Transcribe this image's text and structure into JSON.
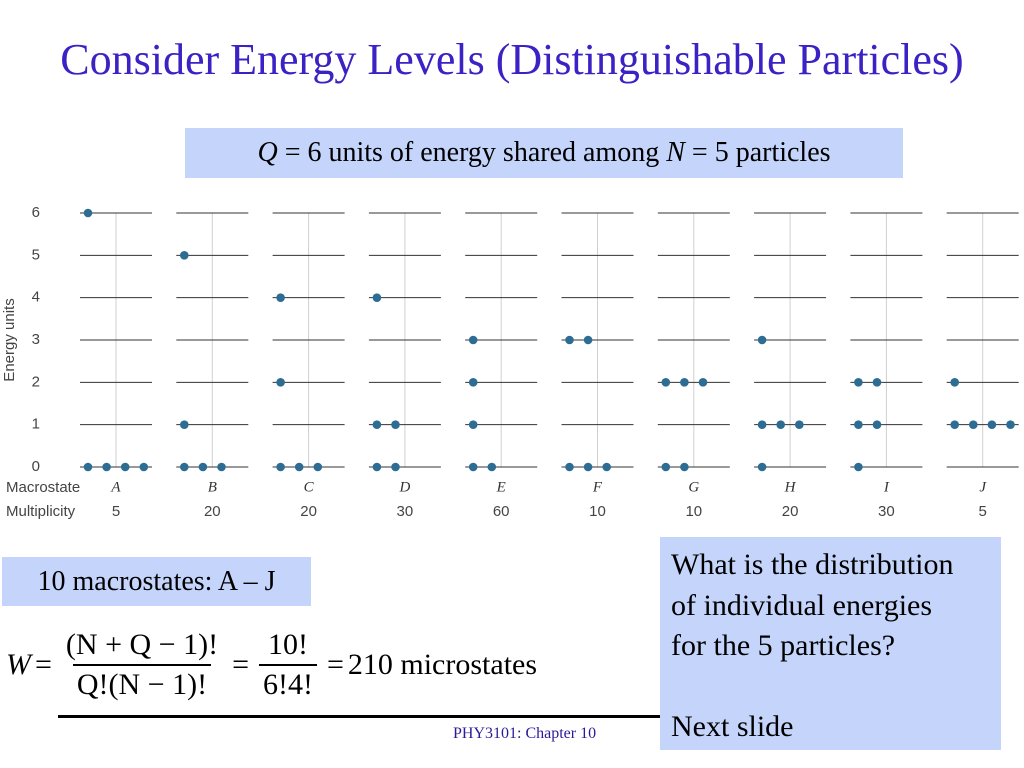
{
  "title": "Consider Energy Levels (Distinguishable Particles)",
  "subtitle": {
    "parts": [
      "Q",
      " = 6 units of energy shared among ",
      "N",
      " = 5 particles"
    ]
  },
  "chart_data": {
    "type": "scatter",
    "ylabel": "Energy units",
    "ylim": [
      0,
      6
    ],
    "yticks": [
      0,
      1,
      2,
      3,
      4,
      5,
      6
    ],
    "categories_label": "Macrostate",
    "categories": [
      "A",
      "B",
      "C",
      "D",
      "E",
      "F",
      "G",
      "H",
      "I",
      "J"
    ],
    "multiplicity_label": "Multiplicity",
    "multiplicity": [
      "5",
      "20",
      "20",
      "30",
      "60",
      "10",
      "10",
      "20",
      "30",
      "5"
    ],
    "color": "#2d6d93",
    "particle_energies": [
      [
        6,
        0,
        0,
        0,
        0
      ],
      [
        5,
        1,
        0,
        0,
        0
      ],
      [
        4,
        2,
        0,
        0,
        0
      ],
      [
        4,
        1,
        1,
        0,
        0
      ],
      [
        3,
        2,
        1,
        0,
        0
      ],
      [
        3,
        3,
        0,
        0,
        0
      ],
      [
        2,
        2,
        2,
        0,
        0
      ],
      [
        3,
        1,
        1,
        1,
        0
      ],
      [
        2,
        2,
        1,
        1,
        0
      ],
      [
        2,
        1,
        1,
        1,
        1
      ]
    ]
  },
  "macrostates_note": "10 macrostates: A – J",
  "formula": {
    "lhs": "W",
    "equals": "=",
    "fraction1": {
      "num": "(N + Q − 1)!",
      "den": "Q!(N − 1)!"
    },
    "fraction2": {
      "num": "10!",
      "den": "6!4!"
    },
    "result": "210 microstates"
  },
  "footer": "PHY3101: Chapter 10",
  "question": {
    "lines": [
      "What is the distribution",
      "of individual energies",
      "for the 5 particles?"
    ],
    "next": "Next slide"
  }
}
